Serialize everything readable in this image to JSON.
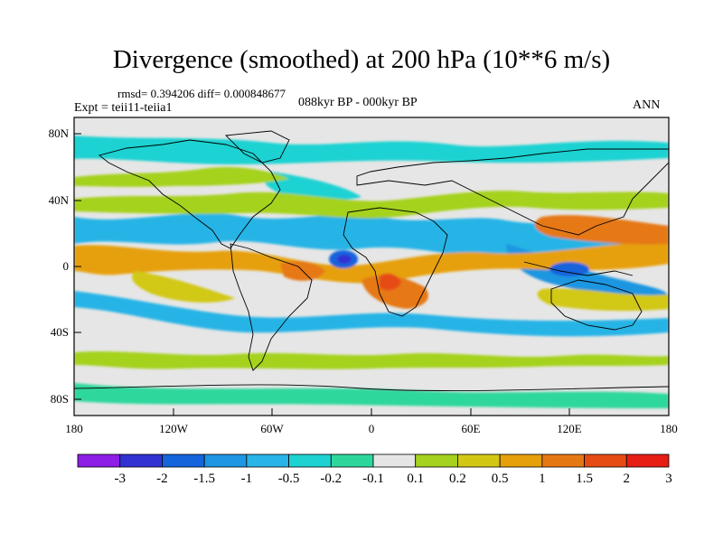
{
  "title": "Divergence (smoothed) at 200 hPa (10**6 m/s)",
  "subtitle_stats": "rmsd= 0.394206 diff= 0.000848677",
  "experiment": "Expt = teii11-teiia1",
  "period": "088kyr BP - 000kyr BP",
  "season": "ANN",
  "map": {
    "lat_ticks": [
      "80N",
      "40N",
      "0",
      "40S",
      "80S"
    ],
    "lon_ticks": [
      "180",
      "120W",
      "60W",
      "0",
      "60E",
      "120E",
      "180"
    ],
    "background_color": "#e6e6e6"
  },
  "colorbar": {
    "labels": [
      "-3",
      "-2",
      "-1.5",
      "-1",
      "-0.5",
      "-0.2",
      "-0.1",
      "0.1",
      "0.2",
      "0.5",
      "1",
      "1.5",
      "2",
      "3"
    ],
    "colors": [
      "#8c1ee6",
      "#3232d2",
      "#1464dc",
      "#1e96e1",
      "#28b4e6",
      "#1ed2d2",
      "#2dd79b",
      "#e6e6e6",
      "#a5d21e",
      "#d2c814",
      "#e6a00a",
      "#e67814",
      "#e64b14",
      "#e61e14"
    ]
  }
}
